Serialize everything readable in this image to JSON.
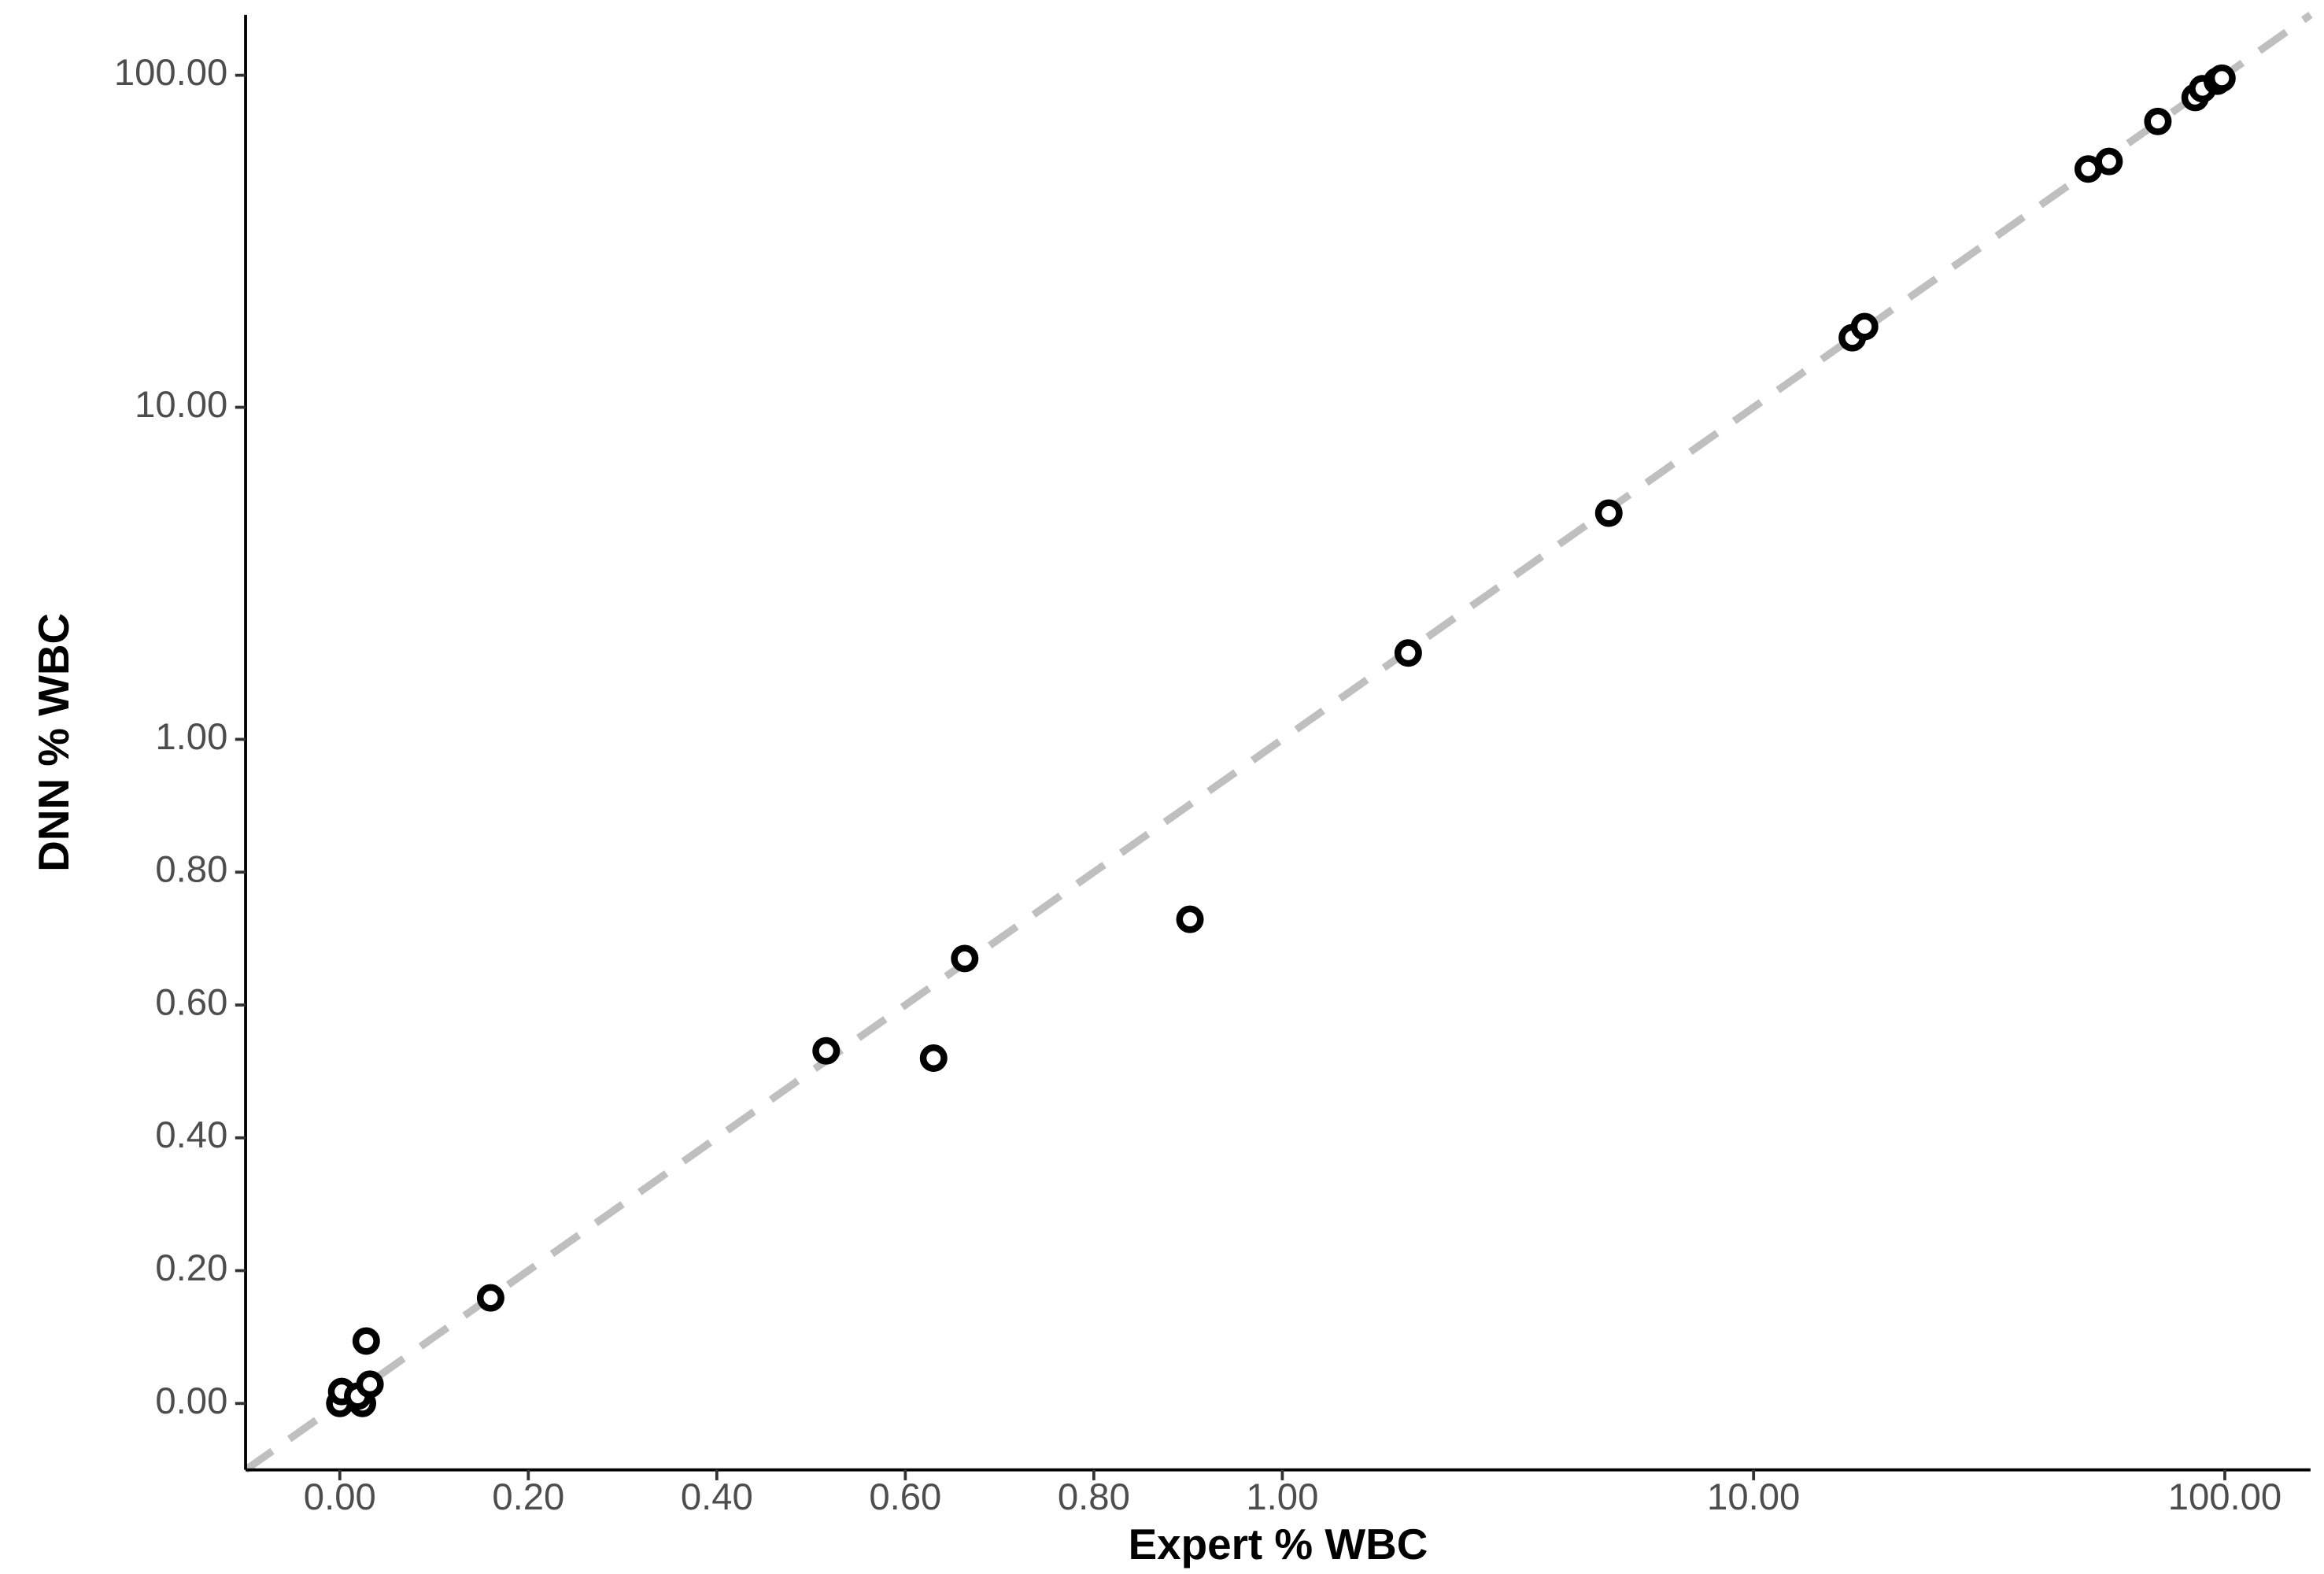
{
  "chart_data": {
    "type": "scatter",
    "x_label": "Expert % WBC",
    "y_label": "DNN % WBC",
    "xscale": {
      "type": "linear-log",
      "break": 1
    },
    "yscale": {
      "type": "linear-log",
      "break": 1
    },
    "xlim": [
      -0.1,
      152
    ],
    "ylim": [
      -0.1,
      152
    ],
    "xticks": [
      {
        "value": 0,
        "label": "0.00"
      },
      {
        "value": 0.2,
        "label": "0.20"
      },
      {
        "value": 0.4,
        "label": "0.40"
      },
      {
        "value": 0.6,
        "label": "0.60"
      },
      {
        "value": 0.8,
        "label": "0.80"
      },
      {
        "value": 1,
        "label": "1.00"
      },
      {
        "value": 10,
        "label": "10.00"
      },
      {
        "value": 100,
        "label": "100.00"
      }
    ],
    "yticks": [
      {
        "value": 0,
        "label": "0.00"
      },
      {
        "value": 0.2,
        "label": "0.20"
      },
      {
        "value": 0.4,
        "label": "0.40"
      },
      {
        "value": 0.6,
        "label": "0.60"
      },
      {
        "value": 0.8,
        "label": "0.80"
      },
      {
        "value": 1,
        "label": "1.00"
      },
      {
        "value": 10,
        "label": "10.00"
      },
      {
        "value": 100,
        "label": "100.00"
      }
    ],
    "identity_line": {
      "color": "#bfbfbf",
      "dashed": true
    },
    "grid": false,
    "marker_color": "#000000",
    "x": [
      0,
      0.002,
      0.024,
      0.019,
      0.032,
      0.028,
      0.16,
      0.516,
      0.63,
      0.663,
      0.902,
      1.85,
      4.93,
      16.2,
      17.2,
      51.3,
      56.8,
      72.1,
      86.5,
      89.7,
      96.4,
      98.6
    ],
    "values": [
      0,
      0.018,
      0,
      0.011,
      0.029,
      0.094,
      0.159,
      0.531,
      0.52,
      0.67,
      0.729,
      1.82,
      4.8,
      16.2,
      17.5,
      52.2,
      55,
      72.6,
      85.7,
      91.1,
      96,
      98
    ]
  }
}
